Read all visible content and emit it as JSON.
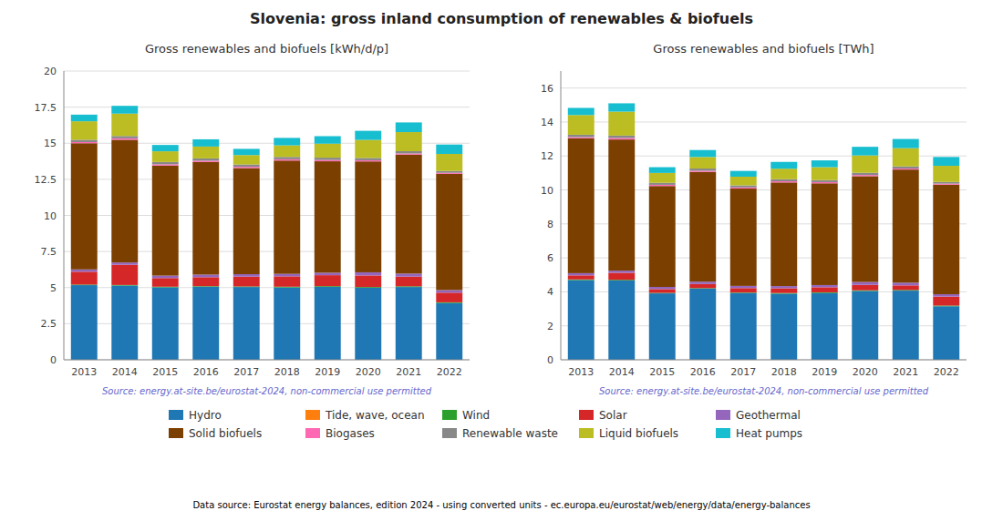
{
  "title": "Slovenia: gross inland consumption of renewables & biofuels",
  "annotations": [
    "Data source: Eurostat energy balances, edition 2024 - using converted units - ec.europa.eu/eurostat/web/energy/data/energy-balances"
  ],
  "chart_data": [
    {
      "type": "bar",
      "stacked": true,
      "grid": true,
      "legend": "bottom",
      "title": "Gross renewables and biofuels [kWh/d/p]",
      "annotations": [
        "Source: energy.at-site.be/eurostat-2024, non-commercial use permitted"
      ],
      "categories": [
        "2013",
        "2014",
        "2015",
        "2016",
        "2017",
        "2018",
        "2019",
        "2020",
        "2021",
        "2022"
      ],
      "ylim": [
        0,
        20
      ],
      "yticks": [
        0,
        2.5,
        5,
        7.5,
        10,
        12.5,
        15,
        17.5,
        20
      ],
      "series": [
        {
          "name": "Hydro",
          "color": "#1f77b4",
          "values": [
            5.17,
            5.14,
            5.02,
            5.06,
            5.04,
            5.01,
            5.05,
            4.99,
            5.04,
            3.93
          ]
        },
        {
          "name": "Tide, wave, ocean",
          "color": "#ff7f0e",
          "values": [
            0.0,
            0.0,
            0.0,
            0.0,
            0.0,
            0.0,
            0.0,
            0.0,
            0.0,
            0.0
          ]
        },
        {
          "name": "Wind",
          "color": "#2ca02c",
          "values": [
            0.04,
            0.04,
            0.04,
            0.04,
            0.04,
            0.05,
            0.05,
            0.05,
            0.05,
            0.05
          ]
        },
        {
          "name": "Solar",
          "color": "#d62728",
          "values": [
            0.89,
            1.4,
            0.6,
            0.62,
            0.68,
            0.72,
            0.76,
            0.8,
            0.67,
            0.67
          ]
        },
        {
          "name": "Geothermal",
          "color": "#9467bd",
          "values": [
            0.16,
            0.16,
            0.17,
            0.18,
            0.17,
            0.17,
            0.17,
            0.22,
            0.21,
            0.18
          ]
        },
        {
          "name": "Solid biofuels",
          "color": "#7B3F00",
          "values": [
            8.74,
            8.5,
            7.62,
            7.8,
            7.35,
            7.85,
            7.72,
            7.68,
            8.24,
            8.05
          ]
        },
        {
          "name": "Biogases",
          "color": "#ff69b4",
          "values": [
            0.08,
            0.1,
            0.09,
            0.09,
            0.09,
            0.09,
            0.09,
            0.08,
            0.08,
            0.07
          ]
        },
        {
          "name": "Renewable waste",
          "color": "#888888",
          "values": [
            0.16,
            0.16,
            0.16,
            0.16,
            0.16,
            0.16,
            0.16,
            0.16,
            0.16,
            0.13
          ]
        },
        {
          "name": "Liquid biofuels",
          "color": "#bcbd22",
          "values": [
            1.28,
            1.55,
            0.74,
            0.82,
            0.65,
            0.8,
            0.97,
            1.25,
            1.32,
            1.18
          ]
        },
        {
          "name": "Heat pumps",
          "color": "#17becf",
          "values": [
            0.46,
            0.54,
            0.44,
            0.5,
            0.43,
            0.52,
            0.52,
            0.63,
            0.67,
            0.65
          ]
        }
      ]
    },
    {
      "type": "bar",
      "stacked": true,
      "grid": true,
      "title": "Gross renewables and biofuels [TWh]",
      "annotations": [
        "Source: energy.at-site.be/eurostat-2024, non-commercial use permitted"
      ],
      "categories": [
        "2013",
        "2014",
        "2015",
        "2016",
        "2017",
        "2018",
        "2019",
        "2020",
        "2021",
        "2022"
      ],
      "ylim": [
        0,
        17
      ],
      "yticks": [
        0,
        2,
        4,
        6,
        8,
        10,
        12,
        14,
        16
      ],
      "series": [
        {
          "name": "Hydro",
          "color": "#1f77b4",
          "values": [
            4.69,
            4.67,
            3.91,
            4.19,
            3.93,
            3.89,
            3.93,
            4.05,
            4.07,
            3.15
          ]
        },
        {
          "name": "Tide, wave, ocean",
          "color": "#ff7f0e",
          "values": [
            0.0,
            0.0,
            0.0,
            0.0,
            0.0,
            0.0,
            0.0,
            0.0,
            0.0,
            0.0
          ]
        },
        {
          "name": "Wind",
          "color": "#2ca02c",
          "values": [
            0.04,
            0.04,
            0.03,
            0.03,
            0.03,
            0.04,
            0.04,
            0.04,
            0.04,
            0.04
          ]
        },
        {
          "name": "Solar",
          "color": "#d62728",
          "values": [
            0.24,
            0.41,
            0.22,
            0.24,
            0.26,
            0.28,
            0.3,
            0.32,
            0.27,
            0.53
          ]
        },
        {
          "name": "Geothermal",
          "color": "#9467bd",
          "values": [
            0.13,
            0.13,
            0.13,
            0.14,
            0.13,
            0.13,
            0.13,
            0.17,
            0.16,
            0.14
          ]
        },
        {
          "name": "Solid biofuels",
          "color": "#7B3F00",
          "values": [
            7.94,
            7.72,
            5.94,
            6.46,
            5.73,
            6.1,
            5.99,
            6.23,
            6.66,
            6.45
          ]
        },
        {
          "name": "Biogases",
          "color": "#ff69b4",
          "values": [
            0.07,
            0.09,
            0.07,
            0.07,
            0.07,
            0.07,
            0.07,
            0.07,
            0.06,
            0.06
          ]
        },
        {
          "name": "Renewable waste",
          "color": "#888888",
          "values": [
            0.14,
            0.14,
            0.12,
            0.13,
            0.12,
            0.12,
            0.12,
            0.13,
            0.13,
            0.1
          ]
        },
        {
          "name": "Liquid biofuels",
          "color": "#bcbd22",
          "values": [
            1.16,
            1.41,
            0.58,
            0.68,
            0.51,
            0.62,
            0.76,
            1.02,
            1.07,
            0.95
          ]
        },
        {
          "name": "Heat pumps",
          "color": "#17becf",
          "values": [
            0.42,
            0.49,
            0.34,
            0.41,
            0.34,
            0.4,
            0.4,
            0.51,
            0.54,
            0.52
          ]
        }
      ]
    }
  ]
}
